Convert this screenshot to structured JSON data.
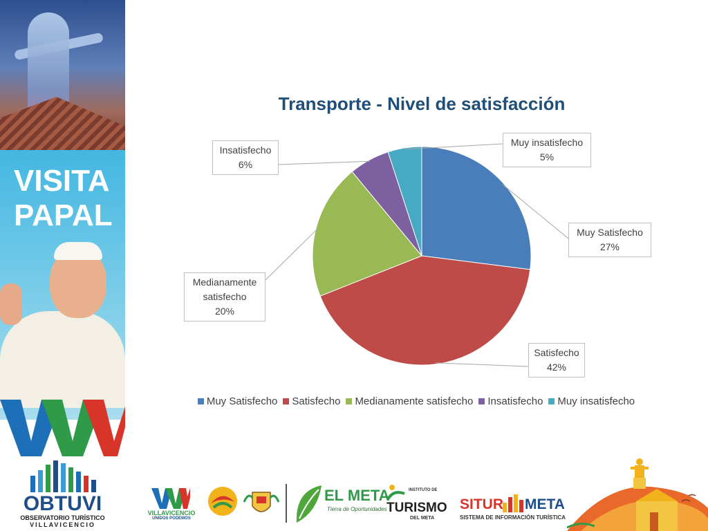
{
  "banner": {
    "visita_line1": "VISITA",
    "visita_line2": "PAPAL",
    "logo_name": "OBTUVI",
    "logo_sub1": "OBSERVATORIO TURÍSTICO",
    "logo_sub2": "VILLAVICENCIO"
  },
  "chart_data": {
    "type": "pie",
    "title": "Transporte - Nivel de satisfacción",
    "categories": [
      "Muy Satisfecho",
      "Satisfecho",
      "Medianamente satisfecho",
      "Insatisfecho",
      "Muy insatisfecho"
    ],
    "values": [
      27,
      42,
      20,
      6,
      5
    ],
    "value_labels": [
      "27%",
      "42%",
      "20%",
      "6%",
      "5%"
    ],
    "colors": [
      "#4a7ebb",
      "#be4b48",
      "#98b954",
      "#7d60a0",
      "#46aac5"
    ],
    "legend_position": "bottom",
    "data_label_texts": [
      [
        "Muy Satisfecho",
        "27%"
      ],
      [
        "Satisfecho",
        "42%"
      ],
      [
        "Medianamente",
        "satisfecho",
        "20%"
      ],
      [
        "Insatisfecho",
        "6%"
      ],
      [
        "Muy insatisfecho",
        "5%"
      ]
    ]
  },
  "footer_logos": {
    "villavicencio": "VILLAVICENCIO",
    "villavicencio_sub": "UNIDOS PODEMOS",
    "el_meta": "EL META",
    "el_meta_slogan": "Tierra de Oportunidades",
    "turismo_top": "INSTITUTO DE",
    "turismo": "TURISMO",
    "turismo_sub": "DEL META",
    "situr": "SITUR",
    "meta": "META",
    "situr_sub": "SISTEMA DE INFORMACIÓN TURÍSTICA"
  }
}
